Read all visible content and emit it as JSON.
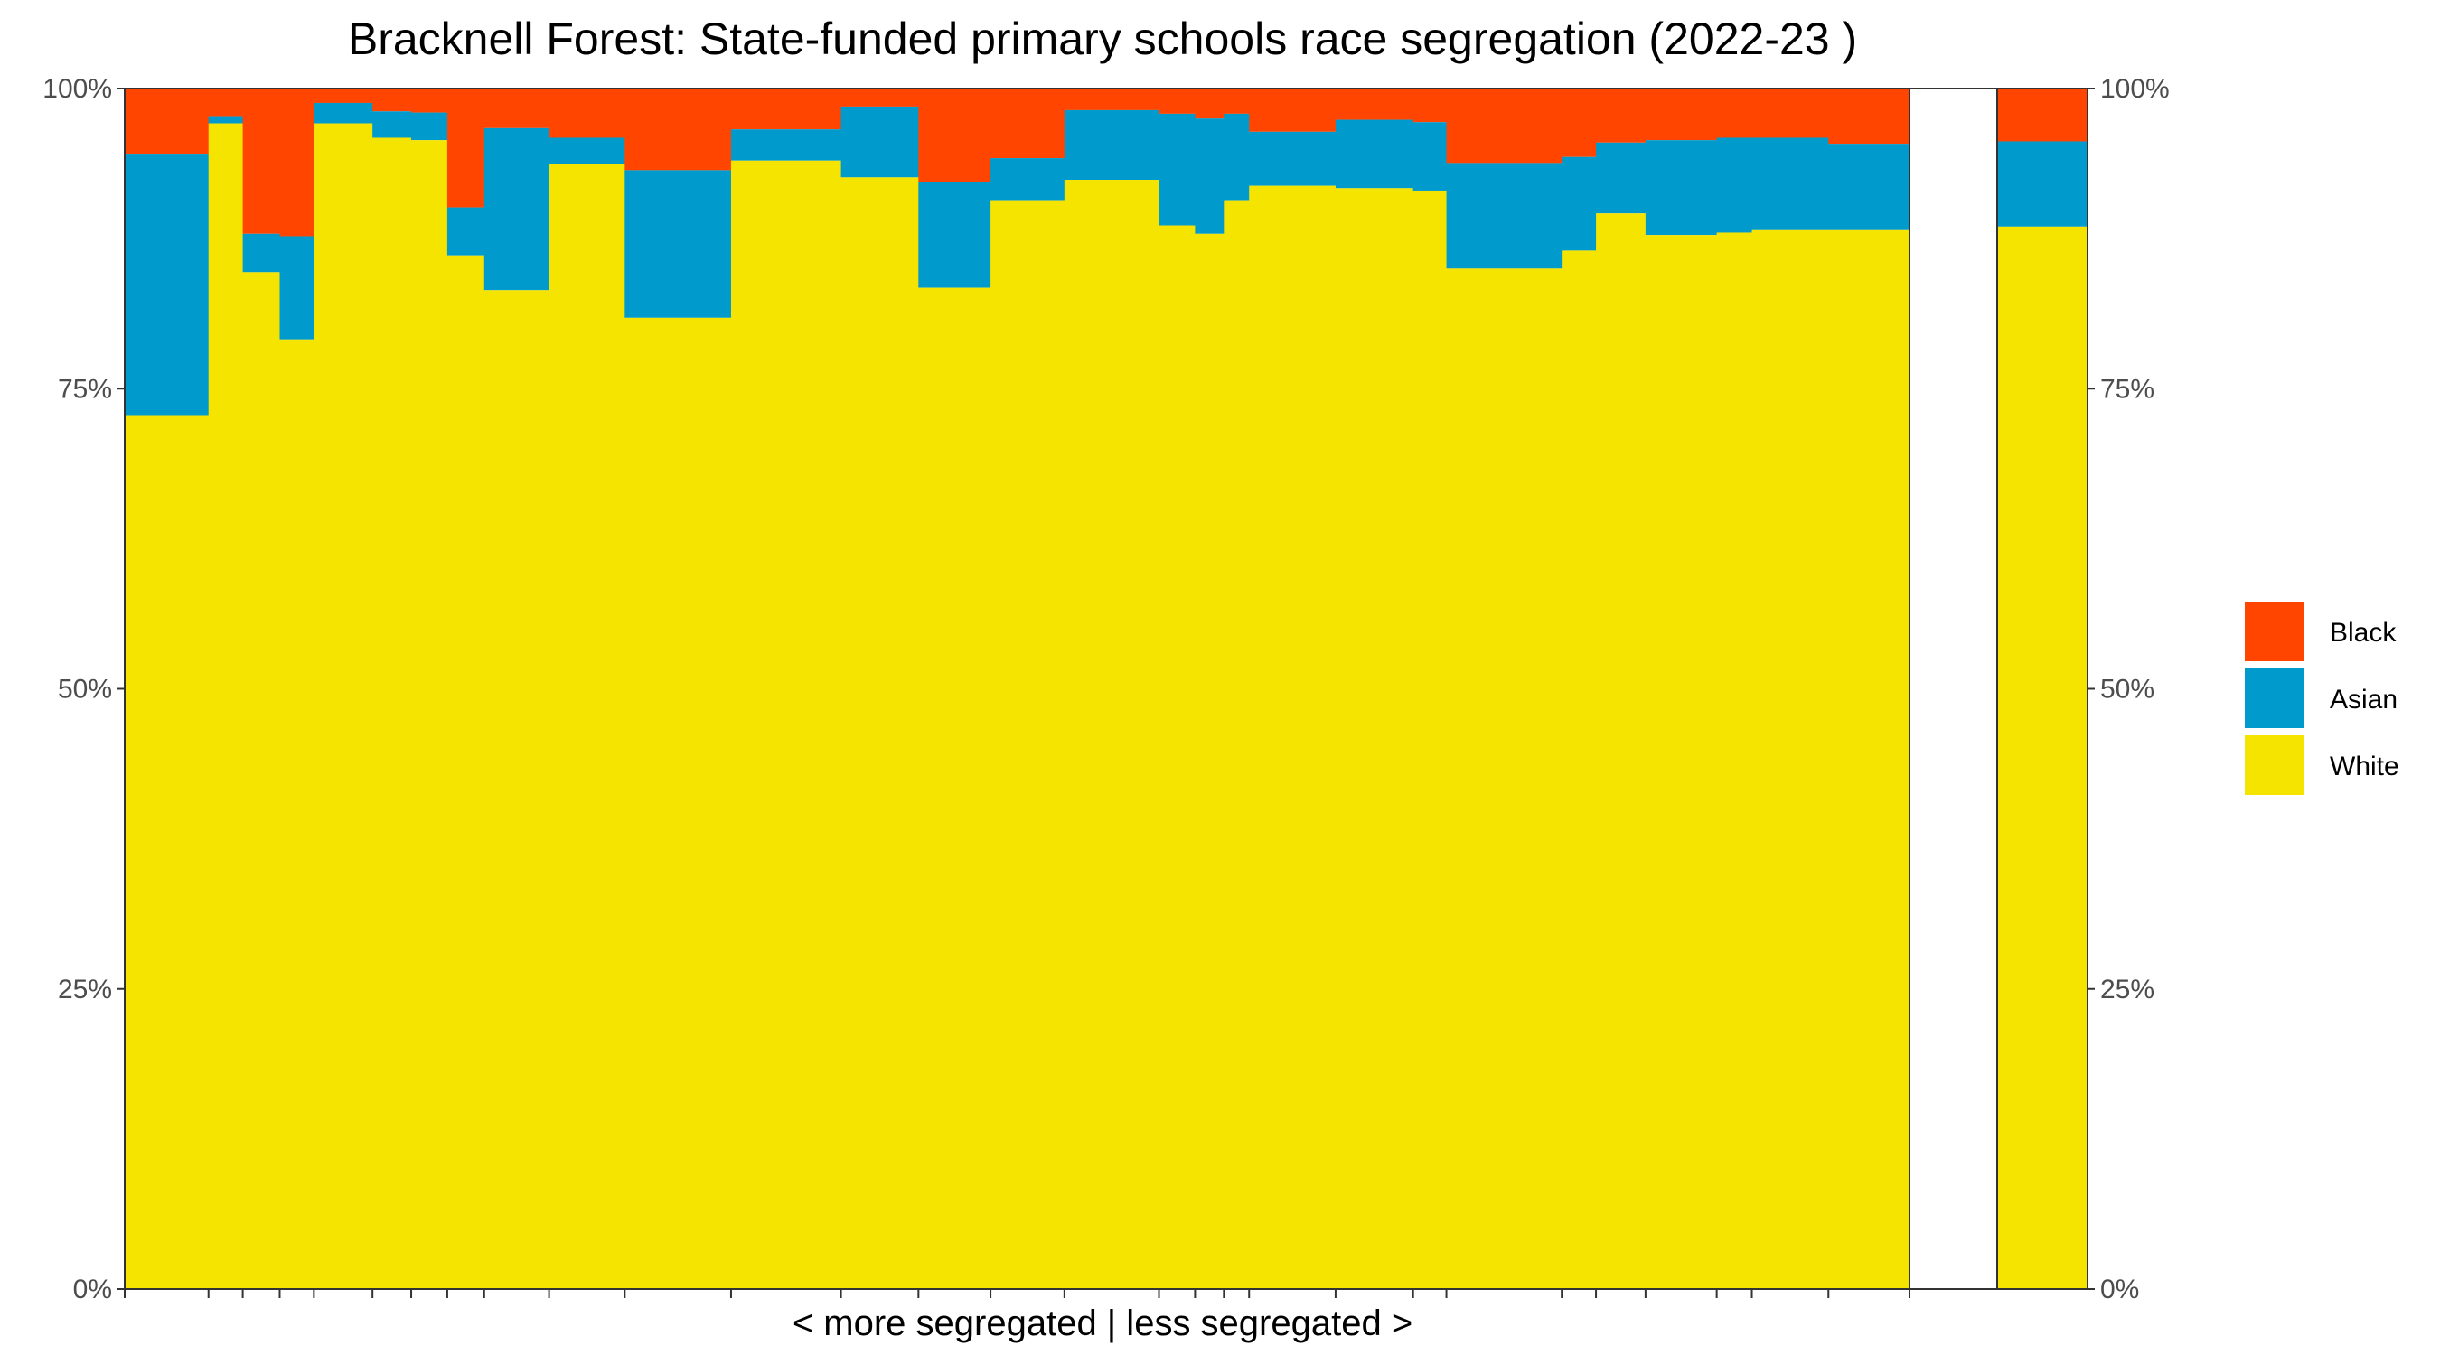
{
  "chart_data": {
    "type": "bar",
    "variant": "stacked-variable-width",
    "title": "Bracknell Forest: State-funded primary schools race segregation (2022-23 )",
    "xlabel": "< more segregated | less segregated >",
    "ylabel": "",
    "ylim": [
      0,
      100
    ],
    "yticks": [
      "0%",
      "25%",
      "50%",
      "75%",
      "100%"
    ],
    "legend": {
      "placement": "right",
      "entries": [
        {
          "name": "Black",
          "color": "#FF4500"
        },
        {
          "name": "Asian",
          "color": "#009ACD"
        },
        {
          "name": "White",
          "color": "#F5E400"
        }
      ]
    },
    "colors": {
      "White": "#F5E400",
      "Asian": "#009ACD",
      "Black": "#FF4500",
      "remainder": "#FF4500"
    },
    "schools": [
      {
        "widthWeight": 9.3,
        "white": 72.8,
        "asian": 21.7
      },
      {
        "widthWeight": 3.8,
        "white": 97.1,
        "asian": 0.6
      },
      {
        "widthWeight": 4.1,
        "white": 84.7,
        "asian": 3.2
      },
      {
        "widthWeight": 3.8,
        "white": 79.1,
        "asian": 8.6
      },
      {
        "widthWeight": 6.5,
        "white": 97.1,
        "asian": 1.7
      },
      {
        "widthWeight": 4.3,
        "white": 95.9,
        "asian": 2.2
      },
      {
        "widthWeight": 4.0,
        "white": 95.7,
        "asian": 2.3
      },
      {
        "widthWeight": 4.1,
        "white": 86.1,
        "asian": 4.0
      },
      {
        "widthWeight": 7.2,
        "white": 83.2,
        "asian": 13.5
      },
      {
        "widthWeight": 8.4,
        "white": 93.7,
        "asian": 2.2
      },
      {
        "widthWeight": 11.8,
        "white": 80.9,
        "asian": 12.3
      },
      {
        "widthWeight": 12.2,
        "white": 94.0,
        "asian": 2.6
      },
      {
        "widthWeight": 8.6,
        "white": 92.6,
        "asian": 5.9
      },
      {
        "widthWeight": 8.0,
        "white": 83.4,
        "asian": 8.8
      },
      {
        "widthWeight": 8.2,
        "white": 90.7,
        "asian": 3.5
      },
      {
        "widthWeight": 10.5,
        "white": 92.4,
        "asian": 5.8
      },
      {
        "widthWeight": 4.0,
        "white": 88.6,
        "asian": 9.3
      },
      {
        "widthWeight": 3.2,
        "white": 87.9,
        "asian": 9.6
      },
      {
        "widthWeight": 2.8,
        "white": 90.7,
        "asian": 7.2
      },
      {
        "widthWeight": 9.6,
        "white": 91.9,
        "asian": 4.5
      },
      {
        "widthWeight": 8.6,
        "white": 91.7,
        "asian": 5.7
      },
      {
        "widthWeight": 3.7,
        "white": 91.5,
        "asian": 5.7
      },
      {
        "widthWeight": 12.8,
        "white": 85.0,
        "asian": 8.8
      },
      {
        "widthWeight": 3.8,
        "white": 86.5,
        "asian": 7.8
      },
      {
        "widthWeight": 5.5,
        "white": 89.6,
        "asian": 5.9
      },
      {
        "widthWeight": 7.9,
        "white": 87.8,
        "asian": 7.9
      },
      {
        "widthWeight": 3.9,
        "white": 88.0,
        "asian": 7.9
      },
      {
        "widthWeight": 8.5,
        "white": 88.2,
        "asian": 7.7
      },
      {
        "widthWeight": 9.0,
        "white": 88.2,
        "asian": 7.2
      }
    ],
    "summary": {
      "white": 88.5,
      "asian": 7.1
    }
  }
}
